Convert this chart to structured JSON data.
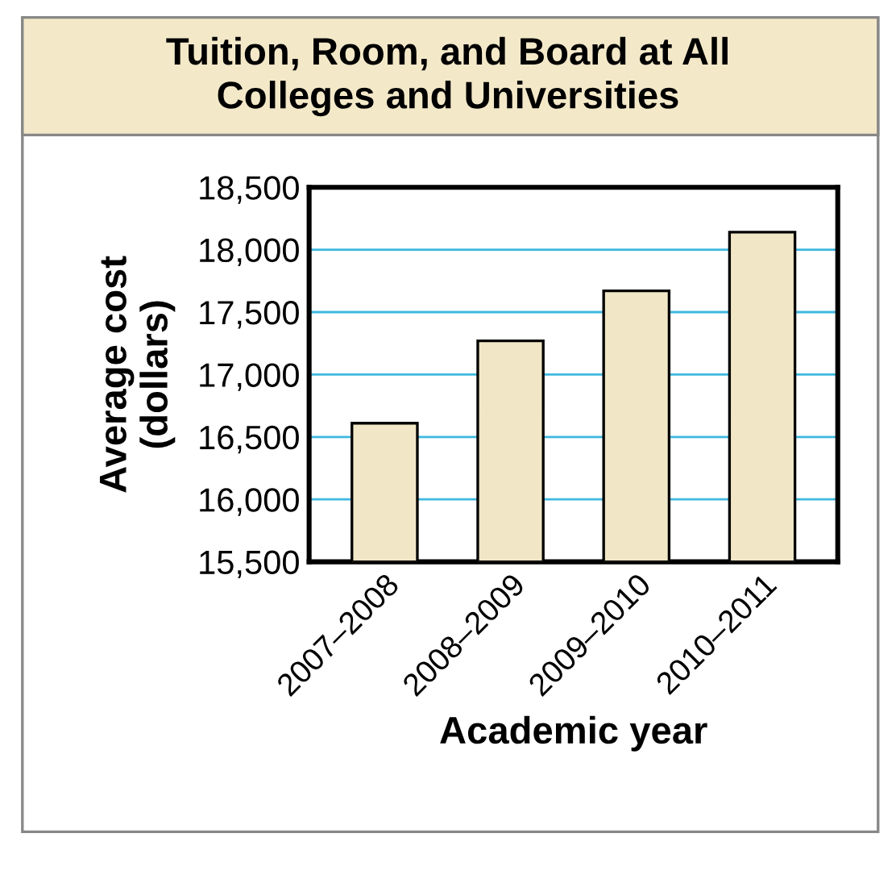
{
  "chart_data": {
    "type": "bar",
    "title": "Tuition, Room, and Board at All\nColleges and Universities",
    "xlabel": "Academic year",
    "ylabel": "Average cost\n(dollars)",
    "categories": [
      "2007–2008",
      "2008–2009",
      "2009–2010",
      "2010–2011"
    ],
    "values": [
      16610,
      17270,
      17670,
      18140
    ],
    "color": "#f1e6c6",
    "ylim": [
      15500,
      18500
    ],
    "yticks": [
      {
        "value": 15500,
        "label": "15,500"
      },
      {
        "value": 16000,
        "label": "16,000"
      },
      {
        "value": 16500,
        "label": "16,500"
      },
      {
        "value": 17000,
        "label": "17,000"
      },
      {
        "value": 17500,
        "label": "17,500"
      },
      {
        "value": 18000,
        "label": "18,000"
      },
      {
        "value": 18500,
        "label": "18,500"
      }
    ],
    "grid": "y"
  }
}
